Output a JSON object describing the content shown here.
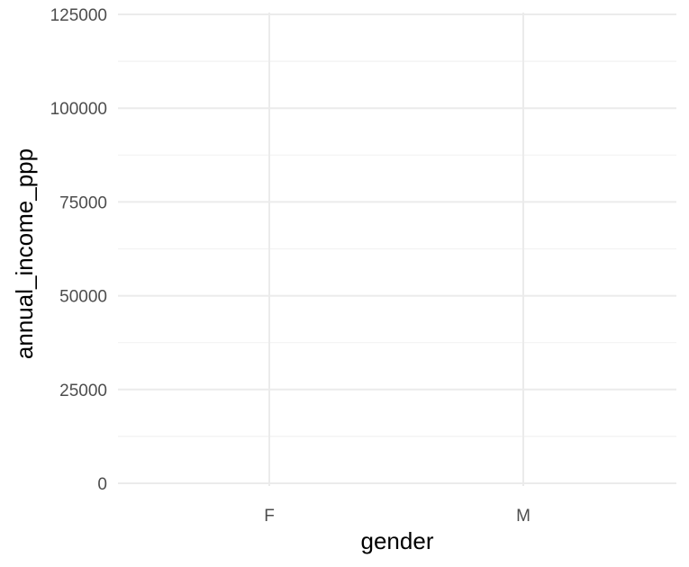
{
  "chart_data": {
    "type": "scatter",
    "categories": [
      "F",
      "M"
    ],
    "series": [],
    "xlabel": "gender",
    "ylabel": "annual_income_ppp",
    "ylim": [
      0,
      125000
    ],
    "yticks": [
      {
        "value": 0,
        "label": "0"
      },
      {
        "value": 25000,
        "label": "25000"
      },
      {
        "value": 50000,
        "label": "50000"
      },
      {
        "value": 75000,
        "label": "75000"
      },
      {
        "value": 100000,
        "label": "100000"
      },
      {
        "value": 125000,
        "label": "125000"
      }
    ],
    "grid": true,
    "legend": "none",
    "colors": {
      "background": "#ffffff",
      "major_grid": "#ebebeb",
      "minor_grid": "#f2f2f2",
      "tick_text": "#4d4d4d",
      "title_text": "#000000"
    }
  }
}
